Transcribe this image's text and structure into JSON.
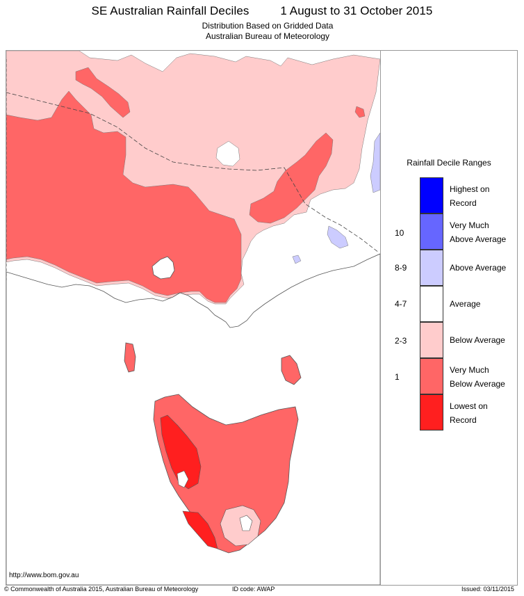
{
  "header": {
    "title": "SE Australian Rainfall Deciles",
    "period": "1 August to 31 October 2015",
    "subtitle1": "Distribution Based on Gridded Data",
    "subtitle2": "Australian Bureau of Meteorology"
  },
  "legend": {
    "title": "Rainfall Decile Ranges",
    "items": [
      {
        "label_line1": "Highest on",
        "label_line2": "Record",
        "decile": "",
        "color": "#0000ff"
      },
      {
        "label_line1": "Very Much",
        "label_line2": "Above Average",
        "decile": "10",
        "color": "#6666ff"
      },
      {
        "label_line1": "Above Average",
        "label_line2": "",
        "decile": "8-9",
        "color": "#ccccff"
      },
      {
        "label_line1": "Average",
        "label_line2": "",
        "decile": "4-7",
        "color": "#ffffff"
      },
      {
        "label_line1": "Below Average",
        "label_line2": "",
        "decile": "2-3",
        "color": "#ffcccc"
      },
      {
        "label_line1": "Very Much",
        "label_line2": "Below Average",
        "decile": "1",
        "color": "#ff6666"
      },
      {
        "label_line1": "Lowest on",
        "label_line2": "Record",
        "decile": "",
        "color": "#ff1f1f"
      }
    ]
  },
  "footer": {
    "url": "http://www.bom.gov.au",
    "copyright": "© Commonwealth of Australia 2015, Australian Bureau of Meteorology",
    "id_code": "ID code: AWAP",
    "issued": "Issued: 03/11/2015"
  }
}
